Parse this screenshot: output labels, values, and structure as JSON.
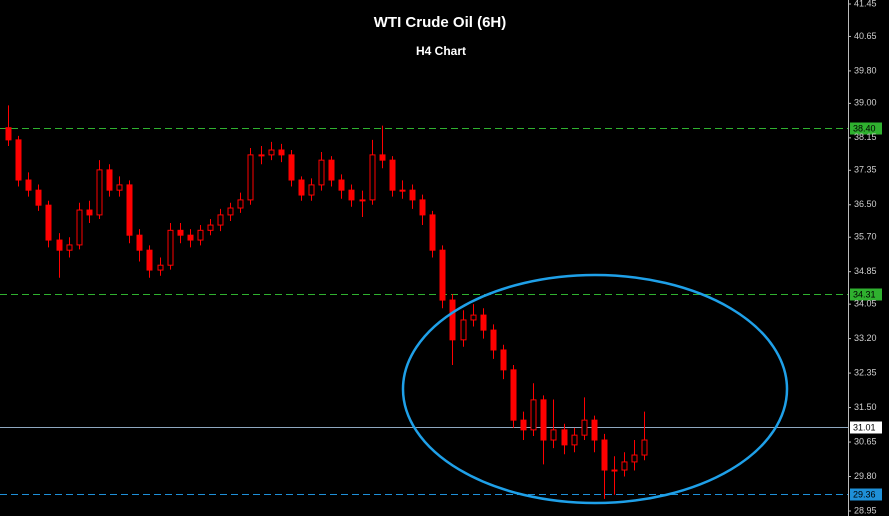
{
  "chart_data": {
    "type": "candlestick",
    "title": "WTI Crude Oil (6H)",
    "subtitle": "H4 Chart",
    "ylim": [
      28.95,
      41.45
    ],
    "yticks": [
      41.45,
      40.65,
      {
        "value": 39.8,
        "label": "39.80"
      },
      {
        "value": 39,
        "label": "39.00"
      },
      38.15,
      37.35,
      {
        "value": 36.5,
        "label": "36.50"
      },
      {
        "value": 35.7,
        "label": "35.70"
      },
      34.85,
      34.05,
      {
        "value": 33.2,
        "label": "33.20"
      },
      32.35,
      {
        "value": 31.5,
        "label": "31.50"
      },
      30.65,
      {
        "value": 29.8,
        "label": "29.80"
      },
      28.95
    ],
    "color": "#ff0000",
    "up_fill": "#000000",
    "open": [
      38.4,
      38.1,
      37.11,
      36.86,
      36.49,
      35.63,
      35.38,
      35.51,
      36.37,
      36.25,
      37.36,
      36.86,
      36.99,
      35.75,
      35.38,
      34.89,
      35.01,
      35.87,
      35.75,
      35.63,
      35.87,
      36.0,
      36.25,
      36.42,
      36.62,
      37.73,
      37.73,
      37.85,
      37.73,
      37.11,
      36.74,
      36.99,
      37.6,
      37.11,
      36.86,
      36.62,
      36.62,
      37.73,
      37.6,
      36.86,
      36.86,
      36.62,
      36.25,
      35.38,
      34.15,
      33.17,
      33.66,
      33.78,
      33.41,
      32.92,
      32.43,
      31.19,
      30.95,
      31.69,
      30.7,
      30.95,
      30.58,
      30.82,
      31.19,
      30.7,
      29.96,
      29.96,
      30.16,
      30.33
    ],
    "high": [
      38.95,
      38.2,
      37.3,
      37.0,
      36.6,
      35.8,
      35.7,
      36.55,
      36.6,
      37.6,
      37.5,
      37.2,
      37.1,
      35.9,
      35.5,
      35.2,
      36.05,
      36.05,
      35.9,
      36.0,
      36.15,
      36.4,
      36.55,
      36.8,
      37.9,
      37.95,
      38.05,
      38.0,
      37.85,
      37.2,
      37.15,
      37.8,
      37.7,
      37.25,
      37.0,
      36.85,
      38.1,
      38.45,
      37.7,
      37.1,
      37.0,
      36.75,
      36.35,
      35.5,
      34.3,
      33.9,
      34.05,
      33.95,
      33.55,
      33.05,
      32.55,
      31.4,
      32.1,
      31.8,
      31.7,
      31.1,
      31.0,
      31.75,
      31.3,
      30.85,
      30.3,
      30.4,
      30.7,
      31.4
    ],
    "low": [
      37.95,
      36.95,
      36.7,
      36.35,
      35.45,
      34.7,
      35.2,
      35.4,
      36.05,
      36.15,
      36.7,
      36.7,
      35.55,
      35.1,
      34.7,
      34.75,
      34.9,
      35.55,
      35.45,
      35.5,
      35.75,
      35.85,
      36.1,
      36.3,
      36.5,
      37.5,
      37.6,
      37.55,
      36.95,
      36.6,
      36.6,
      36.85,
      36.95,
      36.65,
      36.45,
      36.2,
      36.5,
      37.4,
      36.7,
      36.65,
      36.4,
      36.0,
      35.2,
      33.95,
      32.55,
      33.0,
      33.5,
      33.2,
      32.7,
      32.2,
      31.0,
      30.7,
      30.8,
      30.1,
      30.5,
      30.35,
      30.4,
      30.7,
      30.4,
      29.25,
      29.35,
      29.8,
      29.95,
      30.2
    ],
    "close": [
      38.1,
      37.11,
      36.86,
      36.49,
      35.63,
      35.38,
      35.51,
      36.37,
      36.25,
      37.36,
      36.86,
      36.99,
      35.75,
      35.38,
      34.89,
      35.01,
      35.87,
      35.75,
      35.63,
      35.87,
      36.0,
      36.25,
      36.42,
      36.62,
      37.73,
      37.73,
      37.85,
      37.73,
      37.11,
      36.74,
      36.99,
      37.6,
      37.11,
      36.86,
      36.62,
      36.62,
      37.73,
      37.6,
      36.86,
      36.86,
      36.62,
      36.25,
      35.38,
      34.15,
      33.17,
      33.66,
      33.78,
      33.41,
      32.92,
      32.43,
      31.19,
      30.95,
      31.69,
      30.7,
      30.95,
      30.58,
      30.82,
      31.19,
      30.7,
      29.96,
      29.96,
      30.16,
      30.33,
      30.7
    ],
    "levels": [
      {
        "value": {
          "value": 38.4,
          "label": "38.40"
        },
        "color": "#2fb12f",
        "style": "dashed",
        "label_bg": "#2fb12f",
        "label_color": "#000000"
      },
      {
        "value": 34.31,
        "color": "#2fb12f",
        "style": "dashed",
        "label_bg": "#2fb12f",
        "label_color": "#000000"
      },
      {
        "value": 31.01,
        "color": "#8fa8c0",
        "style": "solid",
        "label_bg": "#ffffff",
        "label_color": "#000000"
      },
      {
        "value": 29.36,
        "color": "#1e90d8",
        "style": "dashed",
        "label_bg": "#1e90d8",
        "label_color": "#000000"
      }
    ]
  }
}
